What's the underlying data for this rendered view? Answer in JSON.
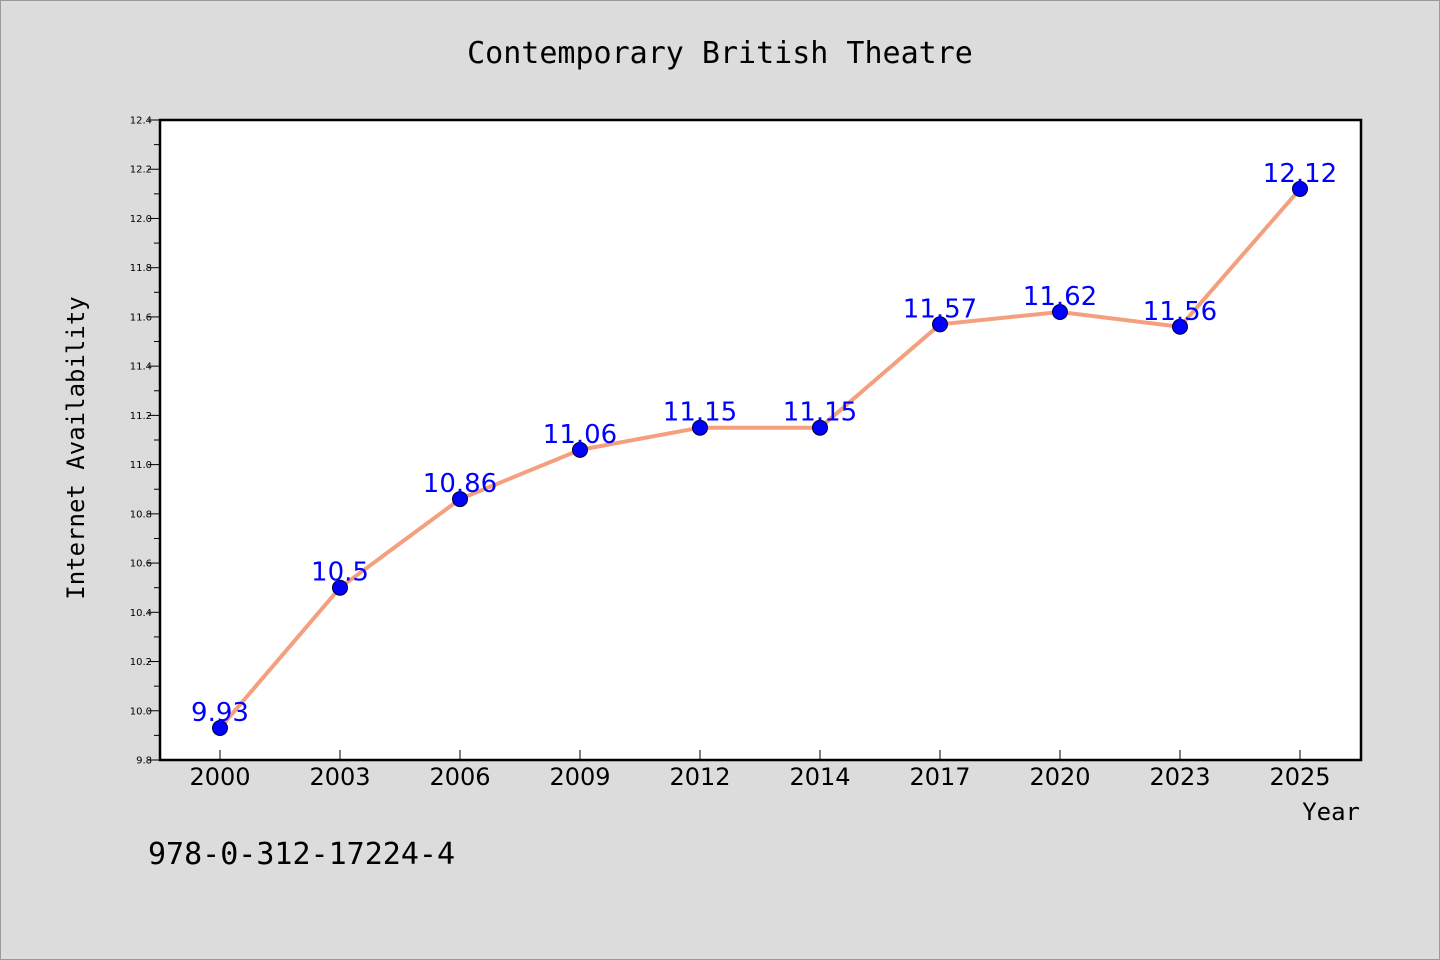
{
  "chart_data": {
    "type": "line",
    "title": "Contemporary British Theatre",
    "xlabel": "Year",
    "ylabel": "Internet Availability",
    "categories": [
      "2000",
      "2003",
      "2006",
      "2009",
      "2012",
      "2014",
      "2017",
      "2020",
      "2023",
      "2025"
    ],
    "series": [
      {
        "values": [
          9.93,
          10.5,
          10.86,
          11.06,
          11.15,
          11.15,
          11.57,
          11.62,
          11.56,
          12.12
        ],
        "data_labels": [
          "9.93",
          "10.5",
          "10.86",
          "11.06",
          "11.15",
          "11.15",
          "11.57",
          "11.62",
          "11.56",
          "12.12"
        ],
        "line_color": "#f4a07e",
        "marker_color": "#0000ff"
      }
    ],
    "ylim": [
      9.8,
      12.4
    ],
    "yticks": [
      "9.8",
      "10.0",
      "10.2",
      "10.4",
      "10.6",
      "10.8",
      "11.0",
      "11.2",
      "11.4",
      "11.6",
      "11.8",
      "12.0",
      "12.2",
      "12.4"
    ],
    "grid": false,
    "legend": "none"
  },
  "annotation": "978-0-312-17224-4",
  "colors": {
    "background": "#dcdcdc",
    "plot_background": "#ffffff",
    "line": "#f4a07e",
    "marker": "#0000ff",
    "data_label": "#0000ff"
  }
}
